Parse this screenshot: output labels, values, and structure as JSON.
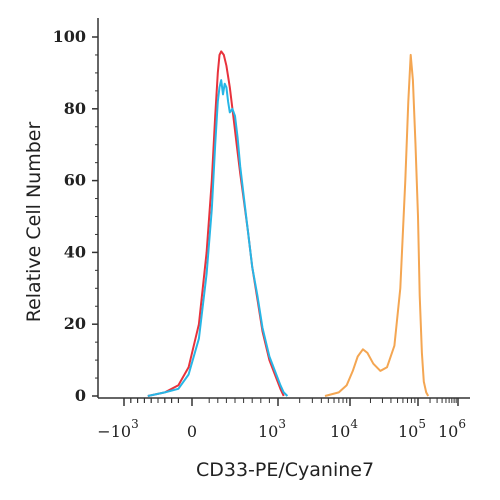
{
  "chart_data": {
    "type": "line",
    "xlabel": "CD33-PE/Cyanine7",
    "ylabel": "Relative Cell Number",
    "xscale": "biexponential",
    "ylim": [
      0,
      100
    ],
    "y_ticks": [
      "0",
      "20",
      "40",
      "60",
      "80",
      "100"
    ],
    "x_ticks": [
      {
        "base": "−10",
        "exp": "3"
      },
      {
        "base": "0",
        "exp": ""
      },
      {
        "base": "10",
        "exp": "3"
      },
      {
        "base": "10",
        "exp": "4"
      },
      {
        "base": "10",
        "exp": "5"
      },
      {
        "base": "10",
        "exp": "6"
      }
    ],
    "grid": false,
    "series": [
      {
        "color": "#e8323c",
        "points": [
          [
            -650,
            0
          ],
          [
            -400,
            1
          ],
          [
            -200,
            3
          ],
          [
            -50,
            8
          ],
          [
            80,
            20
          ],
          [
            170,
            40
          ],
          [
            230,
            60
          ],
          [
            270,
            78
          ],
          [
            300,
            90
          ],
          [
            320,
            95
          ],
          [
            340,
            96
          ],
          [
            370,
            95
          ],
          [
            400,
            92
          ],
          [
            440,
            86
          ],
          [
            480,
            78
          ],
          [
            520,
            70
          ],
          [
            560,
            62
          ],
          [
            600,
            55
          ],
          [
            650,
            46
          ],
          [
            700,
            36
          ],
          [
            760,
            27
          ],
          [
            820,
            18
          ],
          [
            900,
            10
          ],
          [
            980,
            5
          ],
          [
            1080,
            2
          ],
          [
            1200,
            0
          ]
        ]
      },
      {
        "color": "#27b6e6",
        "points": [
          [
            -650,
            0
          ],
          [
            -400,
            1
          ],
          [
            -200,
            2
          ],
          [
            -50,
            6
          ],
          [
            80,
            16
          ],
          [
            170,
            34
          ],
          [
            230,
            52
          ],
          [
            270,
            70
          ],
          [
            300,
            82
          ],
          [
            320,
            86
          ],
          [
            340,
            88
          ],
          [
            360,
            84
          ],
          [
            380,
            87
          ],
          [
            400,
            86
          ],
          [
            420,
            82
          ],
          [
            440,
            79
          ],
          [
            470,
            80
          ],
          [
            500,
            78
          ],
          [
            530,
            72
          ],
          [
            560,
            64
          ],
          [
            600,
            56
          ],
          [
            650,
            46
          ],
          [
            700,
            36
          ],
          [
            760,
            28
          ],
          [
            820,
            19
          ],
          [
            900,
            11
          ],
          [
            980,
            6
          ],
          [
            1080,
            3
          ],
          [
            1200,
            1
          ],
          [
            1350,
            0
          ]
        ]
      },
      {
        "color": "#f4a652",
        "points": [
          [
            4500,
            0
          ],
          [
            7000,
            1
          ],
          [
            9000,
            3
          ],
          [
            11000,
            7
          ],
          [
            13000,
            11
          ],
          [
            15500,
            13
          ],
          [
            18000,
            12
          ],
          [
            22000,
            9
          ],
          [
            28000,
            7
          ],
          [
            35000,
            8
          ],
          [
            45000,
            14
          ],
          [
            55000,
            30
          ],
          [
            65000,
            60
          ],
          [
            72000,
            82
          ],
          [
            78000,
            95
          ],
          [
            84000,
            88
          ],
          [
            92000,
            70
          ],
          [
            100000,
            50
          ],
          [
            110000,
            28
          ],
          [
            125000,
            12
          ],
          [
            140000,
            4
          ],
          [
            160000,
            1
          ],
          [
            180000,
            0
          ]
        ]
      }
    ]
  }
}
